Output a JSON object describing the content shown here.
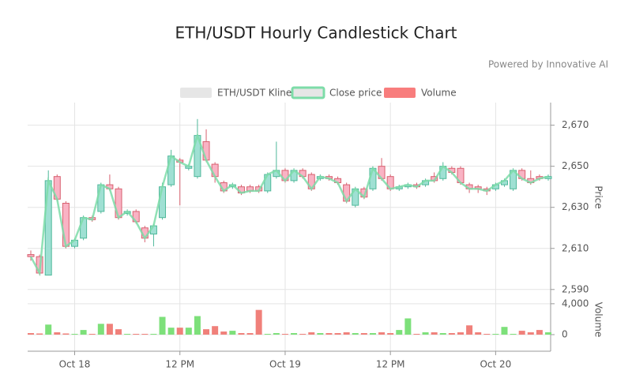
{
  "chart_data": {
    "type": "candlestick",
    "title": "ETH/USDT Hourly Candlestick Chart",
    "subtitle": "Powered by Innovative AI",
    "legend": [
      "ETH/USDT Kline",
      "Close price",
      "Volume"
    ],
    "legend_colors": [
      "#e6e6e6",
      "#7ddca8",
      "#f87d7d"
    ],
    "up_color": "#7ddca8",
    "down_color": "#f87d7d",
    "up_volume_color": "#7de07a",
    "down_volume_color": "#f0807a",
    "y_label": "Price",
    "y2_label": "Volume",
    "x": [
      "10-17 19:00",
      "10-17 20:00",
      "10-17 21:00",
      "10-17 22:00",
      "10-17 23:00",
      "10-18 00:00",
      "10-18 01:00",
      "10-18 02:00",
      "10-18 03:00",
      "10-18 04:00",
      "10-18 05:00",
      "10-18 06:00",
      "10-18 07:00",
      "10-18 08:00",
      "10-18 09:00",
      "10-18 10:00",
      "10-18 11:00",
      "10-18 12:00",
      "10-18 13:00",
      "10-18 14:00",
      "10-18 15:00",
      "10-18 16:00",
      "10-18 17:00",
      "10-18 18:00",
      "10-18 19:00",
      "10-18 20:00",
      "10-18 21:00",
      "10-18 22:00",
      "10-18 23:00",
      "10-19 00:00",
      "10-19 01:00",
      "10-19 02:00",
      "10-19 03:00",
      "10-19 04:00",
      "10-19 05:00",
      "10-19 06:00",
      "10-19 07:00",
      "10-19 08:00",
      "10-19 09:00",
      "10-19 10:00",
      "10-19 11:00",
      "10-19 12:00",
      "10-19 13:00",
      "10-19 14:00",
      "10-19 15:00",
      "10-19 16:00",
      "10-19 17:00",
      "10-19 18:00",
      "10-19 19:00",
      "10-19 20:00",
      "10-19 21:00",
      "10-19 22:00",
      "10-19 23:00",
      "10-20 00:00",
      "10-20 01:00",
      "10-20 02:00",
      "10-20 03:00",
      "10-20 04:00",
      "10-20 05:00",
      "10-20 06:00"
    ],
    "open": [
      2607,
      2606,
      2597,
      2645,
      2632,
      2611,
      2615,
      2625,
      2628,
      2641,
      2639,
      2627,
      2628,
      2620,
      2617,
      2625,
      2641,
      2653,
      2649,
      2645,
      2662,
      2651,
      2642,
      2640,
      2640,
      2640,
      2640,
      2638,
      2645,
      2648,
      2643,
      2648,
      2646,
      2644,
      2645,
      2644,
      2641,
      2631,
      2639,
      2639,
      2650,
      2645,
      2639,
      2640,
      2641,
      2641,
      2645,
      2644,
      2649,
      2649,
      2641,
      2640,
      2639,
      2639,
      2641,
      2639,
      2648,
      2644,
      2645,
      2644
    ],
    "high": [
      2609,
      2607,
      2648,
      2646,
      2633,
      2615,
      2626,
      2626,
      2642,
      2646,
      2640,
      2629,
      2629,
      2621,
      2622,
      2642,
      2658,
      2654,
      2651,
      2673,
      2668,
      2652,
      2643,
      2642,
      2641,
      2641,
      2641,
      2647,
      2662,
      2649,
      2649,
      2649,
      2647,
      2646,
      2646,
      2645,
      2642,
      2640,
      2640,
      2650,
      2654,
      2646,
      2641,
      2642,
      2642,
      2644,
      2647,
      2652,
      2650,
      2650,
      2642,
      2641,
      2640,
      2642,
      2644,
      2649,
      2649,
      2648,
      2646,
      2646
    ],
    "low": [
      2604,
      2597,
      2597,
      2633,
      2610,
      2610,
      2614,
      2623,
      2627,
      2638,
      2624,
      2626,
      2622,
      2613,
      2611,
      2624,
      2640,
      2631,
      2648,
      2644,
      2652,
      2642,
      2637,
      2639,
      2636,
      2637,
      2637,
      2637,
      2644,
      2642,
      2642,
      2644,
      2638,
      2643,
      2643,
      2641,
      2632,
      2630,
      2634,
      2638,
      2643,
      2638,
      2638,
      2639,
      2639,
      2640,
      2642,
      2643,
      2646,
      2641,
      2637,
      2637,
      2636,
      2638,
      2640,
      2638,
      2643,
      2641,
      2643,
      2643
    ],
    "close": [
      2606,
      2598,
      2643,
      2634,
      2611,
      2614,
      2625,
      2624,
      2641,
      2639,
      2625,
      2628,
      2623,
      2615,
      2621,
      2640,
      2655,
      2652,
      2650,
      2665,
      2653,
      2645,
      2638,
      2641,
      2637,
      2638,
      2638,
      2646,
      2648,
      2643,
      2648,
      2645,
      2639,
      2645,
      2644,
      2642,
      2633,
      2639,
      2635,
      2649,
      2644,
      2639,
      2640,
      2641,
      2640,
      2643,
      2643,
      2650,
      2647,
      2642,
      2639,
      2639,
      2638,
      2641,
      2643,
      2648,
      2644,
      2642,
      2644,
      2645
    ],
    "volume": [
      200,
      150,
      1300,
      300,
      150,
      100,
      600,
      100,
      1400,
      1400,
      700,
      100,
      100,
      100,
      100,
      2300,
      900,
      900,
      900,
      2400,
      700,
      1100,
      400,
      500,
      200,
      200,
      3200,
      100,
      200,
      100,
      200,
      100,
      300,
      200,
      200,
      200,
      300,
      200,
      200,
      200,
      300,
      200,
      600,
      2100,
      100,
      300,
      300,
      200,
      200,
      300,
      1200,
      300,
      100,
      100,
      1000,
      100,
      500,
      300,
      600,
      300
    ],
    "ylim": [
      2588,
      2681
    ],
    "yticks": [
      {
        "value": 2590,
        "label": "2,590"
      },
      {
        "value": 2610,
        "label": "2,610"
      },
      {
        "value": 2630,
        "label": "2,630"
      },
      {
        "value": 2650,
        "label": "2,650"
      },
      {
        "value": 2670,
        "label": "2,670"
      }
    ],
    "y2lim": [
      -2150,
      4700
    ],
    "y2ticks": [
      0,
      {
        "value": 4000,
        "label": "4,000"
      }
    ],
    "xticks": [
      {
        "value": "10-18 00:00",
        "label": "Oct 18"
      },
      {
        "value": "10-18 12:00",
        "label": "12 PM"
      },
      {
        "value": "10-19 00:00",
        "label": "Oct 19"
      },
      {
        "value": "10-19 12:00",
        "label": "12 PM"
      },
      {
        "value": "10-20 00:00",
        "label": "Oct 20"
      }
    ],
    "grid": true
  }
}
